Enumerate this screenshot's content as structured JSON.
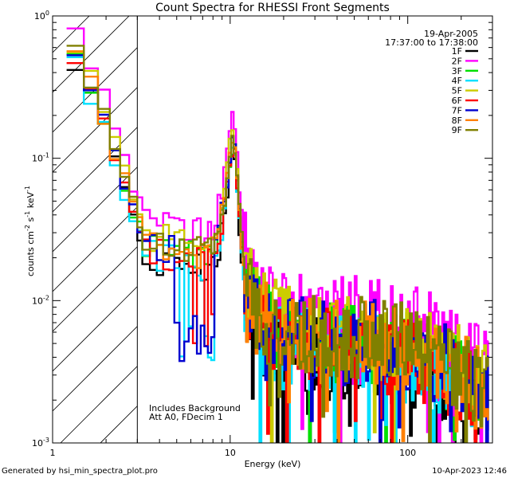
{
  "chart_data": {
    "type": "line",
    "title": "Count Spectra for RHESSI Front Segments",
    "xlabel": "Energy (keV)",
    "ylabel_parts": {
      "base": "counts cm",
      "exp1": "-2",
      "mid1": " s",
      "exp2": "-1",
      "mid2": " keV",
      "exp3": "-1"
    },
    "xscale": "log",
    "yscale": "log",
    "xlim": [
      1,
      300
    ],
    "ylim": [
      0.001,
      1
    ],
    "x_ticks": [
      {
        "value": 1,
        "label": "1"
      },
      {
        "value": 10,
        "label": "10"
      },
      {
        "value": 100,
        "label": "100"
      }
    ],
    "y_ticks": [
      {
        "value": 1,
        "base": "10",
        "exp": "0"
      },
      {
        "value": 0.1,
        "base": "10",
        "exp": "-1"
      },
      {
        "value": 0.01,
        "base": "10",
        "exp": "-2"
      },
      {
        "value": 0.001,
        "base": "10",
        "exp": "-3"
      }
    ],
    "shaded_region": {
      "x": [
        1,
        3
      ],
      "pattern": "diagonal-hatch"
    },
    "date": "19-Apr-2005",
    "time_range": "17:37:00 to 17:38:00",
    "annotations": [
      "Includes Background",
      "Att A0, FDecim 1"
    ],
    "legend_position": "top-right",
    "series": [
      {
        "name": "1F",
        "color": "#000000",
        "seed": 3,
        "scale": 0.8,
        "dip": 0
      },
      {
        "name": "2F",
        "color": "#ff00ff",
        "seed": 7,
        "scale": 1.5,
        "dip": 0
      },
      {
        "name": "3F",
        "color": "#00e000",
        "seed": 11,
        "scale": 0.95,
        "dip": 0
      },
      {
        "name": "4F",
        "color": "#00e0ff",
        "seed": 17,
        "scale": 0.85,
        "dip": 0.4
      },
      {
        "name": "5F",
        "color": "#cccc00",
        "seed": 23,
        "scale": 1.15,
        "dip": 0
      },
      {
        "name": "6F",
        "color": "#ff0000",
        "seed": 29,
        "scale": 0.9,
        "dip": 0.2
      },
      {
        "name": "7F",
        "color": "#0000d0",
        "seed": 31,
        "scale": 1.0,
        "dip": 1
      },
      {
        "name": "8F",
        "color": "#ff8000",
        "seed": 37,
        "scale": 1.0,
        "dip": 0
      },
      {
        "name": "9F",
        "color": "#808000",
        "seed": 41,
        "scale": 1.05,
        "dip": 0
      }
    ],
    "spectrum_shape": [
      {
        "e": 1.3,
        "v": 0.55
      },
      {
        "e": 1.5,
        "v": 0.42
      },
      {
        "e": 1.7,
        "v": 0.28
      },
      {
        "e": 2.0,
        "v": 0.17
      },
      {
        "e": 2.3,
        "v": 0.1
      },
      {
        "e": 2.6,
        "v": 0.06
      },
      {
        "e": 3.0,
        "v": 0.035
      },
      {
        "e": 3.5,
        "v": 0.025
      },
      {
        "e": 4.5,
        "v": 0.024
      },
      {
        "e": 5.5,
        "v": 0.024
      },
      {
        "e": 6.5,
        "v": 0.022
      },
      {
        "e": 7.5,
        "v": 0.02
      },
      {
        "e": 8.5,
        "v": 0.028
      },
      {
        "e": 9.3,
        "v": 0.05
      },
      {
        "e": 10.0,
        "v": 0.11
      },
      {
        "e": 10.5,
        "v": 0.14
      },
      {
        "e": 11.0,
        "v": 0.06
      },
      {
        "e": 12.0,
        "v": 0.015
      },
      {
        "e": 14.0,
        "v": 0.008
      },
      {
        "e": 20.0,
        "v": 0.0055
      },
      {
        "e": 35.0,
        "v": 0.005
      },
      {
        "e": 60.0,
        "v": 0.0052
      },
      {
        "e": 100.0,
        "v": 0.0045
      },
      {
        "e": 200.0,
        "v": 0.003
      },
      {
        "e": 280.0,
        "v": 0.0022
      }
    ],
    "footer_left": "Generated by hsi_min_spectra_plot.pro",
    "footer_right": "10-Apr-2023 12:46"
  }
}
